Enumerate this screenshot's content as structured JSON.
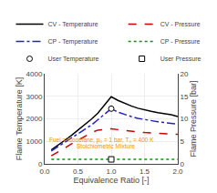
{
  "chart_data": {
    "type": "line",
    "x_label": "Equivalence Ratio [-]",
    "y_label": "Flame Temperature [K]",
    "y2_label": "Flame Pressure [bar]",
    "xlim": [
      0.0,
      2.0
    ],
    "xticks": [
      {
        "value": 0,
        "label": "0.0"
      },
      0.5,
      {
        "value": 1,
        "label": "1.0"
      },
      1.5,
      {
        "value": 2,
        "label": "2.0"
      }
    ],
    "ylim": [
      0,
      4000
    ],
    "yticks": [
      0,
      1000,
      2000,
      3000,
      4000
    ],
    "y2lim": [
      0,
      20
    ],
    "y2ticks": [
      0,
      5,
      10,
      15,
      20
    ],
    "grid": true,
    "legend": "top",
    "series": [
      {
        "name": "CV - Temperature",
        "color": "#000000",
        "line_style": "solid",
        "axis": "y",
        "x": [
          0.1,
          0.2,
          0.3,
          0.4,
          0.5,
          0.6,
          0.7,
          0.8,
          0.9,
          1.0,
          1.1,
          1.2,
          1.3,
          1.4,
          1.5,
          1.6,
          1.7,
          1.8,
          1.9,
          2.0
        ],
        "values": [
          620,
          820,
          1040,
          1260,
          1490,
          1740,
          1980,
          2250,
          2600,
          2980,
          2820,
          2680,
          2570,
          2470,
          2390,
          2330,
          2270,
          2230,
          2185,
          2100
        ]
      },
      {
        "name": "CP - Temperature",
        "color": "#2222CC",
        "line_style": "dashdot",
        "axis": "y",
        "x": [
          0.1,
          0.2,
          0.3,
          0.4,
          0.5,
          0.6,
          0.7,
          0.8,
          0.9,
          1.0,
          1.1,
          1.2,
          1.3,
          1.4,
          1.5,
          1.6,
          1.7,
          1.8,
          1.9,
          2.0
        ],
        "values": [
          570,
          760,
          950,
          1130,
          1310,
          1510,
          1720,
          1960,
          2200,
          2450,
          2300,
          2190,
          2100,
          2020,
          1960,
          1910,
          1870,
          1835,
          1800,
          1760
        ]
      },
      {
        "name": "User Temperature",
        "type": "scatter",
        "marker": "circle",
        "color": "#000000",
        "axis": "y",
        "x": [
          1.0
        ],
        "values": [
          2450
        ]
      },
      {
        "name": "CV - Pressure",
        "color": "#CC0000",
        "line_style": "dash",
        "axis": "y2",
        "x": [
          0.1,
          0.2,
          0.3,
          0.4,
          0.5,
          0.6,
          0.7,
          0.8,
          0.9,
          1.0,
          1.1,
          1.2,
          1.3,
          1.4,
          1.5,
          1.6,
          1.7,
          1.8,
          1.9,
          2.0
        ],
        "values": [
          1.8,
          2.6,
          3.5,
          4.4,
          5.2,
          6.1,
          6.9,
          7.5,
          7.6,
          7.8,
          7.6,
          7.4,
          7.2,
          7.05,
          6.95,
          6.85,
          6.75,
          6.68,
          6.6,
          6.55
        ]
      },
      {
        "name": "CP - Pressure",
        "color": "#009900",
        "line_style": "dot",
        "axis": "y2",
        "x": [
          0.1,
          0.5,
          1.0,
          1.5,
          2.0
        ],
        "values": [
          1.0,
          1.0,
          1.0,
          1.0,
          1.0
        ]
      },
      {
        "name": "User Pressure",
        "type": "scatter",
        "marker": "square",
        "color": "#000000",
        "axis": "y2",
        "x": [
          1.0
        ],
        "values": [
          1.0
        ]
      }
    ],
    "annotations": [
      {
        "text": "Fuel = Isooctane, p₀ = 1 bar, T₀ = 400 K",
        "color": "#FF8C00"
      },
      {
        "text": "Stoichiometric Mixture",
        "color": "#FF8C00"
      }
    ]
  }
}
